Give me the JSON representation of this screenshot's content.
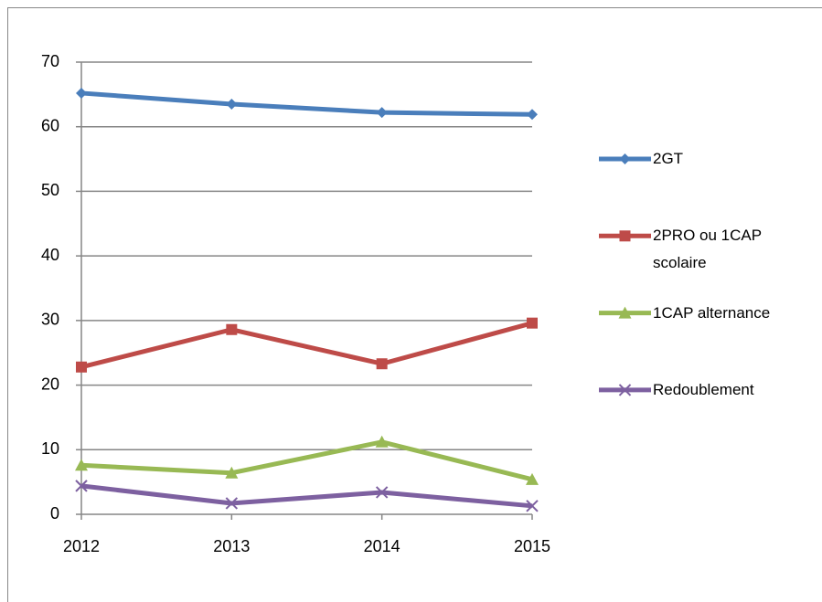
{
  "chart_data": {
    "type": "line",
    "x": [
      2012,
      2013,
      2014,
      2015
    ],
    "xlim": [
      2012,
      2015
    ],
    "xticks": [
      2012,
      2013,
      2014,
      2015
    ],
    "ylim": [
      0,
      70
    ],
    "yticks": [
      0,
      10,
      20,
      30,
      40,
      50,
      60,
      70
    ],
    "grid": true,
    "legend": "right",
    "series": [
      {
        "name": "2GT",
        "color": "#4a7ebb",
        "marker": "diamond",
        "values": [
          65.2,
          63.5,
          62.2,
          61.9
        ]
      },
      {
        "name": "2PRO ou 1CAP scolaire",
        "color": "#be4b48",
        "marker": "square",
        "values": [
          22.8,
          28.6,
          23.3,
          29.6
        ]
      },
      {
        "name": "1CAP alternance",
        "color": "#98b954",
        "marker": "triangle",
        "values": [
          7.6,
          6.4,
          11.2,
          5.4
        ]
      },
      {
        "name": "Redoublement",
        "color": "#7d60a0",
        "marker": "x",
        "values": [
          4.4,
          1.7,
          3.4,
          1.3
        ]
      }
    ]
  }
}
